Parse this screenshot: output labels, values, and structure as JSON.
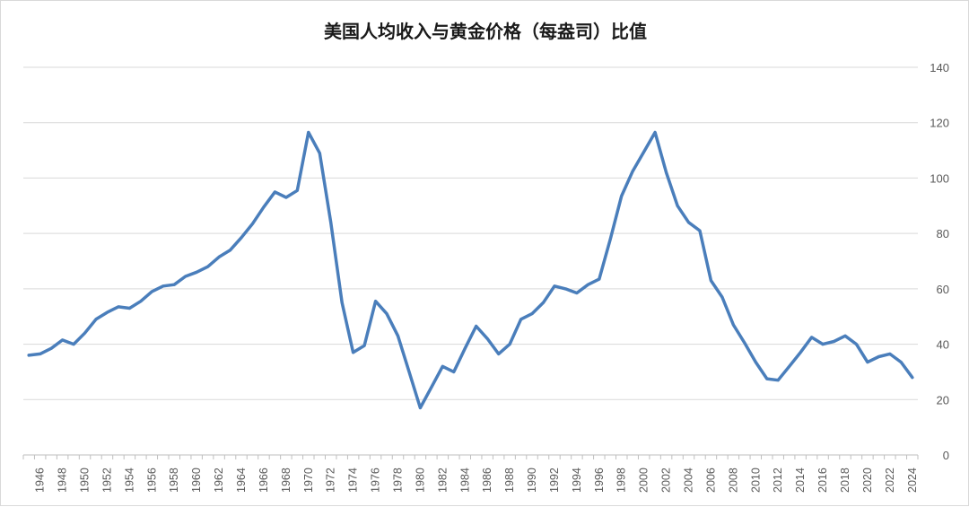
{
  "chart_data": {
    "type": "line",
    "title": "美国人均收入与黄金价格（每盎司）比值",
    "xlabel": "",
    "ylabel": "",
    "ylim": [
      0,
      140
    ],
    "yticks": [
      0,
      20,
      40,
      60,
      80,
      100,
      120,
      140
    ],
    "y_axis_side": "right",
    "grid": true,
    "legend": "none",
    "line_color": "#4a7ebb",
    "x_tick_labels": [
      "1946",
      "1948",
      "1950",
      "1952",
      "1954",
      "1956",
      "1958",
      "1960",
      "1962",
      "1964",
      "1966",
      "1968",
      "1970",
      "1972",
      "1974",
      "1976",
      "1978",
      "1980",
      "1982",
      "1984",
      "1986",
      "1988",
      "1990",
      "1992",
      "1994",
      "1996",
      "1998",
      "2000",
      "2002",
      "2004",
      "2006",
      "2008",
      "2010",
      "2012",
      "2014",
      "2016",
      "2018",
      "2020",
      "2022",
      "2024"
    ],
    "x": [
      1945,
      1946,
      1947,
      1948,
      1949,
      1950,
      1951,
      1952,
      1953,
      1954,
      1955,
      1956,
      1957,
      1958,
      1959,
      1960,
      1961,
      1962,
      1963,
      1964,
      1965,
      1966,
      1967,
      1968,
      1969,
      1970,
      1971,
      1972,
      1973,
      1974,
      1975,
      1976,
      1977,
      1978,
      1979,
      1980,
      1981,
      1982,
      1983,
      1984,
      1985,
      1986,
      1987,
      1988,
      1989,
      1990,
      1991,
      1992,
      1993,
      1994,
      1995,
      1996,
      1997,
      1998,
      1999,
      2000,
      2001,
      2002,
      2003,
      2004,
      2005,
      2006,
      2007,
      2008,
      2009,
      2010,
      2011,
      2012,
      2013,
      2014,
      2015,
      2016,
      2017,
      2018,
      2019,
      2020,
      2021,
      2022,
      2023,
      2024
    ],
    "series": [
      {
        "values": [
          36,
          36.5,
          38.5,
          41.5,
          40,
          44,
          49,
          51.5,
          53.5,
          53,
          55.5,
          59,
          61,
          61.5,
          64.5,
          66,
          68,
          71.5,
          74,
          78.5,
          83.5,
          89.5,
          95,
          93,
          95.5,
          116.5,
          109,
          84,
          55,
          37,
          39.5,
          55.5,
          51,
          43,
          30,
          17,
          24.5,
          32,
          30,
          38.5,
          46.5,
          42,
          36.5,
          40,
          49,
          51,
          55,
          61,
          60,
          58.5,
          61.5,
          63.5,
          78,
          93.5,
          102.5,
          109.5,
          116.5,
          102,
          90,
          84,
          81,
          63,
          57,
          47,
          40.5,
          33.5,
          27.5,
          27,
          32,
          37,
          42.5,
          40,
          41,
          43,
          40,
          33.5,
          35.5,
          36.5,
          33.5,
          28
        ]
      }
    ]
  }
}
